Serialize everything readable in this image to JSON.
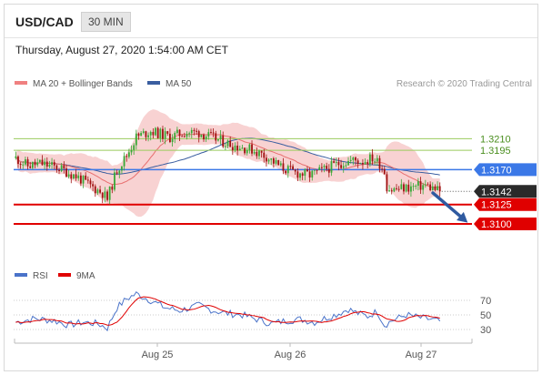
{
  "header": {
    "pair": "USD/CAD",
    "timeframe": "30 MIN"
  },
  "datetime": "Thursday, August 27, 2020 1:54:00 AM CET",
  "legend": {
    "ma_bb": "MA 20 + Bollinger Bands",
    "ma50": "MA 50"
  },
  "credit": "Research © 2020 Trading Central",
  "colors": {
    "bullish": "#38a836",
    "bearish": "#a01010",
    "bollinger": "#f6c3c3",
    "ma20": "#e87070",
    "ma50": "#3a5ea0",
    "resistance": "#9acb5e",
    "pivot": "#3b78e7",
    "support": "#e00000",
    "rsi": "#4a73c9",
    "rsi_ma": "#e00000"
  },
  "chart_data": {
    "type": "candlestick",
    "ylim": [
      1.3046,
      1.3248
    ],
    "x_ticks": [
      "Aug 25",
      "Aug 26",
      "Aug 27"
    ],
    "close_path": [
      [
        0,
        1.3185
      ],
      [
        5,
        1.3175
      ],
      [
        10,
        1.3178
      ],
      [
        18,
        1.3172
      ],
      [
        26,
        1.316
      ],
      [
        30,
        1.3151
      ],
      [
        36,
        1.314
      ],
      [
        38,
        1.3132
      ],
      [
        42,
        1.317
      ],
      [
        46,
        1.3188
      ],
      [
        50,
        1.3212
      ],
      [
        56,
        1.322
      ],
      [
        60,
        1.3216
      ],
      [
        64,
        1.3212
      ],
      [
        70,
        1.3218
      ],
      [
        76,
        1.3218
      ],
      [
        80,
        1.3213
      ],
      [
        86,
        1.3206
      ],
      [
        92,
        1.32
      ],
      [
        98,
        1.3196
      ],
      [
        104,
        1.3187
      ],
      [
        110,
        1.3173
      ],
      [
        116,
        1.3166
      ],
      [
        122,
        1.3163
      ],
      [
        128,
        1.317
      ],
      [
        134,
        1.3178
      ],
      [
        140,
        1.3182
      ],
      [
        144,
        1.3181
      ],
      [
        148,
        1.3185
      ],
      [
        151,
        1.3178
      ],
      [
        153,
        1.3168
      ],
      [
        154,
        1.3148
      ],
      [
        156,
        1.3144
      ],
      [
        160,
        1.3146
      ],
      [
        166,
        1.3148
      ],
      [
        170,
        1.315
      ],
      [
        176,
        1.3142
      ]
    ],
    "levels": [
      {
        "value": 1.321,
        "label": "1.3210",
        "role": "resistance"
      },
      {
        "value": 1.3195,
        "label": "1.3195",
        "role": "resistance"
      },
      {
        "value": 1.317,
        "label": "1.3170",
        "role": "pivot"
      },
      {
        "value": 1.3142,
        "label": "1.3142",
        "role": "last"
      },
      {
        "value": 1.3125,
        "label": "1.3125",
        "role": "support"
      },
      {
        "value": 1.31,
        "label": "1.3100",
        "role": "support"
      }
    ],
    "rsi": {
      "legend": [
        "RSI",
        "9MA"
      ],
      "ticks": [
        70,
        50,
        30
      ],
      "ylim": [
        15,
        90
      ],
      "path": [
        [
          0,
          40
        ],
        [
          8,
          45
        ],
        [
          16,
          42
        ],
        [
          22,
          36
        ],
        [
          28,
          40
        ],
        [
          34,
          38
        ],
        [
          38,
          32
        ],
        [
          42,
          60
        ],
        [
          46,
          72
        ],
        [
          50,
          79
        ],
        [
          56,
          70
        ],
        [
          62,
          60
        ],
        [
          68,
          56
        ],
        [
          76,
          63
        ],
        [
          82,
          56
        ],
        [
          88,
          52
        ],
        [
          94,
          50
        ],
        [
          100,
          44
        ],
        [
          106,
          38
        ],
        [
          112,
          42
        ],
        [
          118,
          44
        ],
        [
          124,
          40
        ],
        [
          128,
          45
        ],
        [
          134,
          52
        ],
        [
          138,
          58
        ],
        [
          142,
          52
        ],
        [
          146,
          48
        ],
        [
          150,
          55
        ],
        [
          153,
          36
        ],
        [
          156,
          42
        ],
        [
          162,
          50
        ],
        [
          168,
          46
        ],
        [
          172,
          44
        ],
        [
          176,
          41
        ]
      ]
    }
  }
}
